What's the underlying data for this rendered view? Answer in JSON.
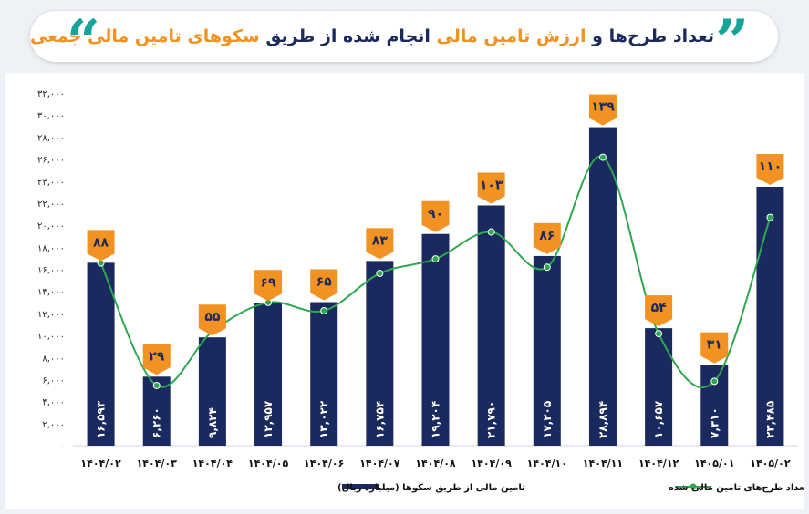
{
  "header": {
    "title_part1": "تعداد طرح‌ها و",
    "title_part2": "ارزش تامین مالی",
    "title_part3": "انجام شده از طریق",
    "title_part4": "سکوهای تامین مالی جمعی",
    "quote_left": "“",
    "quote_right": "”"
  },
  "colors": {
    "bar": "#1b2a5e",
    "line": "#2ea84e",
    "marker": "#f29222",
    "marker_text": "#1b2a5e"
  },
  "chart_data": {
    "type": "bar",
    "title": "تعداد طرح‌ها و ارزش تامین مالی انجام شده از طریق سکوهای تامین مالی جمعی",
    "categories": [
      "۱۴۰۴/۰۲",
      "۱۴۰۴/۰۳",
      "۱۴۰۴/۰۴",
      "۱۴۰۴/۰۵",
      "۱۴۰۴/۰۶",
      "۱۴۰۴/۰۷",
      "۱۴۰۴/۰۸",
      "۱۴۰۴/۰۹",
      "۱۴۰۴/۱۰",
      "۱۴۰۴/۱۱",
      "۱۴۰۴/۱۲",
      "۱۴۰۵/۰۱",
      "۱۴۰۵/۰۲"
    ],
    "series": [
      {
        "name": "تامین مالی از طریق سکوها (میلیارد ریال)",
        "type": "bar",
        "values": [
          16593,
          6260,
          9824,
          12957,
          13022,
          16754,
          19204,
          21790,
          17205,
          28894,
          10657,
          7310,
          23485
        ],
        "labels": [
          "۱۶,۵۹۳",
          "۶,۲۶۰",
          "۹,۸۲۴",
          "۱۲,۹۵۷",
          "۱۳,۰۲۲",
          "۱۶,۷۵۴",
          "۱۹,۲۰۴",
          "۲۱,۷۹۰",
          "۱۷,۲۰۵",
          "۲۸,۸۹۴",
          "۱۰,۶۵۷",
          "۷,۳۱۰",
          "۲۳,۴۸۵"
        ]
      },
      {
        "name": "تعداد طرح‌های تامین مالی شده",
        "type": "line",
        "values": [
          88,
          29,
          55,
          69,
          65,
          83,
          90,
          103,
          86,
          139,
          54,
          31,
          110
        ],
        "labels": [
          "۸۸",
          "۲۹",
          "۵۵",
          "۶۹",
          "۶۵",
          "۸۳",
          "۹۰",
          "۱۰۳",
          "۸۶",
          "۱۳۹",
          "۵۴",
          "۳۱",
          "۱۱۰"
        ]
      }
    ],
    "ylim": [
      0,
      32000
    ],
    "yticks": [
      0,
      2000,
      4000,
      6000,
      8000,
      10000,
      12000,
      14000,
      16000,
      18000,
      20000,
      22000,
      24000,
      26000,
      28000,
      30000,
      32000
    ],
    "ytick_labels": [
      "۰",
      "۲,۰۰۰",
      "۴,۰۰۰",
      "۶,۰۰۰",
      "۸,۰۰۰",
      "۱۰,۰۰۰",
      "۱۲,۰۰۰",
      "۱۴,۰۰۰",
      "۱۶,۰۰۰",
      "۱۸,۰۰۰",
      "۲۰,۰۰۰",
      "۲۲,۰۰۰",
      "۲۴,۰۰۰",
      "۲۶,۰۰۰",
      "۲۸,۰۰۰",
      "۳۰,۰۰۰",
      "۳۲,۰۰۰"
    ],
    "line_ylim": [
      0,
      170
    ],
    "grid": false,
    "legend_position": "bottom"
  }
}
